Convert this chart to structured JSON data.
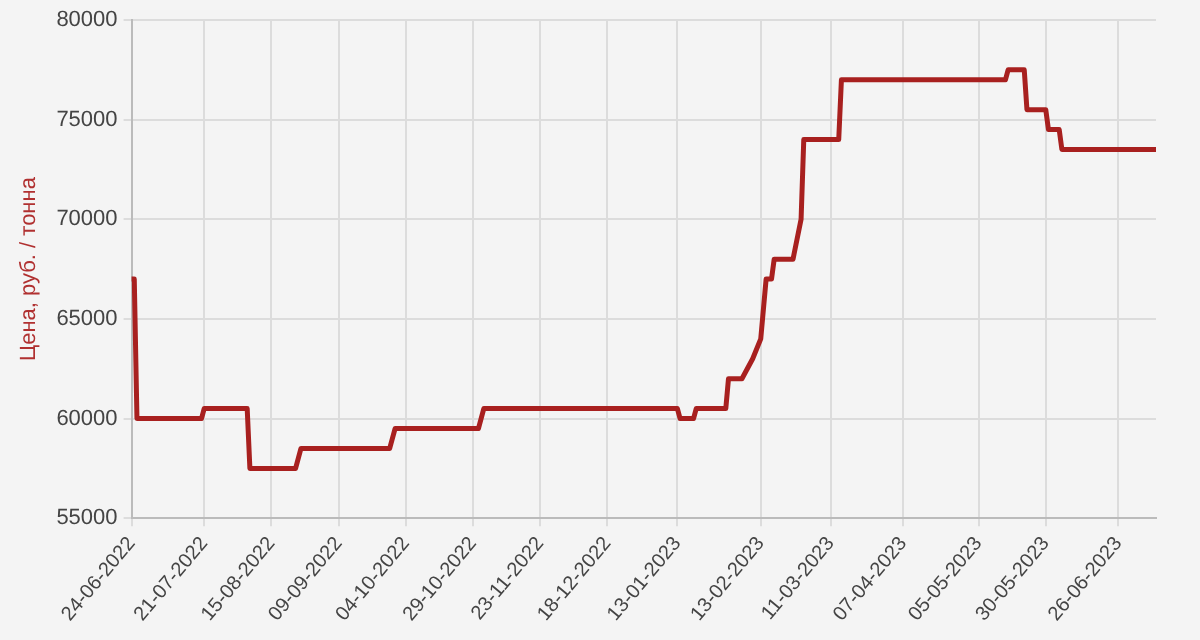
{
  "chart_data": {
    "type": "line",
    "ylabel": "Цена, руб. / тонна",
    "ylim": [
      55000,
      80000
    ],
    "yticks": [
      55000,
      60000,
      65000,
      70000,
      75000,
      80000
    ],
    "xlim": [
      "2022-06-24",
      "2023-07-10"
    ],
    "xticks": [
      {
        "value": "2022-06-24",
        "label": "24-06-2022"
      },
      {
        "value": "2022-07-21",
        "label": "21-07-2022"
      },
      {
        "value": "2022-08-15",
        "label": "15-08-2022"
      },
      {
        "value": "2022-09-09",
        "label": "09-09-2022"
      },
      {
        "value": "2022-10-04",
        "label": "04-10-2022"
      },
      {
        "value": "2022-10-29",
        "label": "29-10-2022"
      },
      {
        "value": "2022-11-23",
        "label": "23-11-2022"
      },
      {
        "value": "2022-12-18",
        "label": "18-12-2022"
      },
      {
        "value": "2023-01-13",
        "label": "13-01-2023"
      },
      {
        "value": "2023-02-13",
        "label": "13-02-2023"
      },
      {
        "value": "2023-03-11",
        "label": "11-03-2023"
      },
      {
        "value": "2023-04-07",
        "label": "07-04-2023"
      },
      {
        "value": "2023-05-05",
        "label": "05-05-2023"
      },
      {
        "value": "2023-05-30",
        "label": "30-05-2023"
      },
      {
        "value": "2023-06-26",
        "label": "26-06-2023"
      }
    ],
    "x": [
      "2022-06-24",
      "2022-06-25",
      "2022-06-26",
      "2022-07-20",
      "2022-07-21",
      "2022-08-06",
      "2022-08-07",
      "2022-08-24",
      "2022-08-26",
      "2022-09-28",
      "2022-09-30",
      "2022-10-31",
      "2022-11-02",
      "2023-01-13",
      "2023-01-14",
      "2023-01-19",
      "2023-01-20",
      "2023-01-31",
      "2023-02-01",
      "2023-02-06",
      "2023-02-10",
      "2023-02-13",
      "2023-02-15",
      "2023-02-17",
      "2023-02-18",
      "2023-02-25",
      "2023-02-28",
      "2023-03-01",
      "2023-03-14",
      "2023-03-15",
      "2023-05-15",
      "2023-05-16",
      "2023-05-22",
      "2023-05-23",
      "2023-05-30",
      "2023-05-31",
      "2023-06-04",
      "2023-06-05",
      "2023-07-10"
    ],
    "series": [
      {
        "color": "#a8201f",
        "values": [
          67000,
          67000,
          60000,
          60000,
          60500,
          60500,
          57500,
          57500,
          58500,
          58500,
          59500,
          59500,
          60500,
          60500,
          60000,
          60000,
          60500,
          60500,
          62000,
          62000,
          63000,
          64000,
          67000,
          67000,
          68000,
          68000,
          70000,
          74000,
          74000,
          77000,
          77000,
          77500,
          77500,
          75500,
          75500,
          74500,
          74500,
          73500,
          73500
        ]
      }
    ],
    "grid": true,
    "legend": false,
    "marker": "none",
    "line_style": "solid"
  }
}
